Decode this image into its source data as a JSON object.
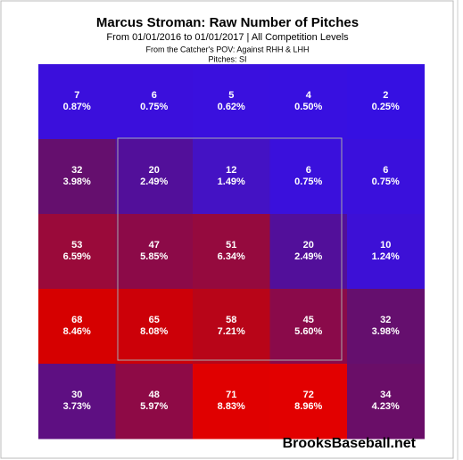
{
  "chart_data": {
    "type": "heatmap",
    "title": "Marcus Stroman: Raw Number of Pitches",
    "subtitle": "From 01/01/2016 to 01/01/2017 | All Competition Levels",
    "perspective": "From the Catcher's POV:  Against RHH & LHH",
    "pitches": "Pitches:  SI",
    "watermark": "BrooksBaseball.net",
    "values": [
      [
        7,
        6,
        5,
        4,
        2
      ],
      [
        32,
        20,
        12,
        6,
        6
      ],
      [
        53,
        47,
        51,
        20,
        10
      ],
      [
        68,
        65,
        58,
        45,
        32
      ],
      [
        30,
        48,
        71,
        72,
        34
      ]
    ],
    "percents": [
      [
        0.87,
        0.75,
        0.62,
        0.5,
        0.25
      ],
      [
        3.98,
        2.49,
        1.49,
        0.75,
        0.75
      ],
      [
        6.59,
        5.85,
        6.34,
        2.49,
        1.24
      ],
      [
        8.46,
        8.08,
        7.21,
        5.6,
        3.98
      ],
      [
        3.73,
        5.97,
        8.83,
        8.96,
        4.23
      ]
    ],
    "percent_labels": [
      [
        "0.87%",
        "0.75%",
        "0.62%",
        "0.50%",
        "0.25%"
      ],
      [
        "3.98%",
        "2.49%",
        "1.49%",
        "0.75%",
        "0.75%"
      ],
      [
        "6.59%",
        "5.85%",
        "6.34%",
        "2.49%",
        "1.24%"
      ],
      [
        "8.46%",
        "8.08%",
        "7.21%",
        "5.60%",
        "3.98%"
      ],
      [
        "3.73%",
        "5.97%",
        "8.83%",
        "8.96%",
        "4.23%"
      ]
    ],
    "colors": [
      [
        "#3b0fdc",
        "#3b0fdc",
        "#3a10de",
        "#3810e0",
        "#3610e2"
      ],
      [
        "#650f6e",
        "#520f9a",
        "#4412c4",
        "#3a10dc",
        "#3a10dc"
      ],
      [
        "#9a0a3a",
        "#8c0a48",
        "#950a3e",
        "#520f9a",
        "#3d10d6"
      ],
      [
        "#d60000",
        "#cc0008",
        "#b80518",
        "#8a0a4a",
        "#650f6e"
      ],
      [
        "#5e0f82",
        "#8e0a46",
        "#e00000",
        "#e20000",
        "#6a0e68"
      ]
    ]
  }
}
